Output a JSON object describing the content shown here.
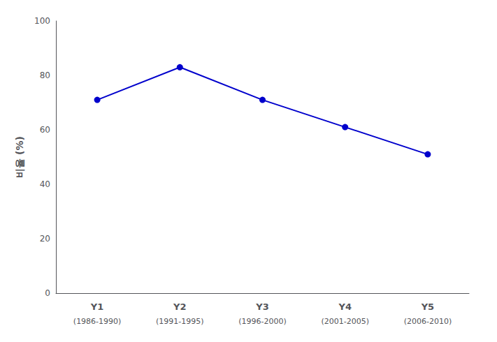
{
  "chart_data": {
    "type": "line",
    "categories": [
      "Y1\n(1986-1990)",
      "Y2\n(1991-1995)",
      "Y3\n(1996-2000)",
      "Y4\n(2001-2005)",
      "Y5\n(2006-2010)"
    ],
    "values": [
      71,
      83,
      71,
      61,
      51
    ],
    "ylabel": "비율 (%)",
    "color": "#0000CC",
    "marker": "circle",
    "ylim": [
      0,
      100
    ],
    "yticks": [
      0,
      20,
      40,
      60,
      80,
      100
    ],
    "grid": false
  }
}
